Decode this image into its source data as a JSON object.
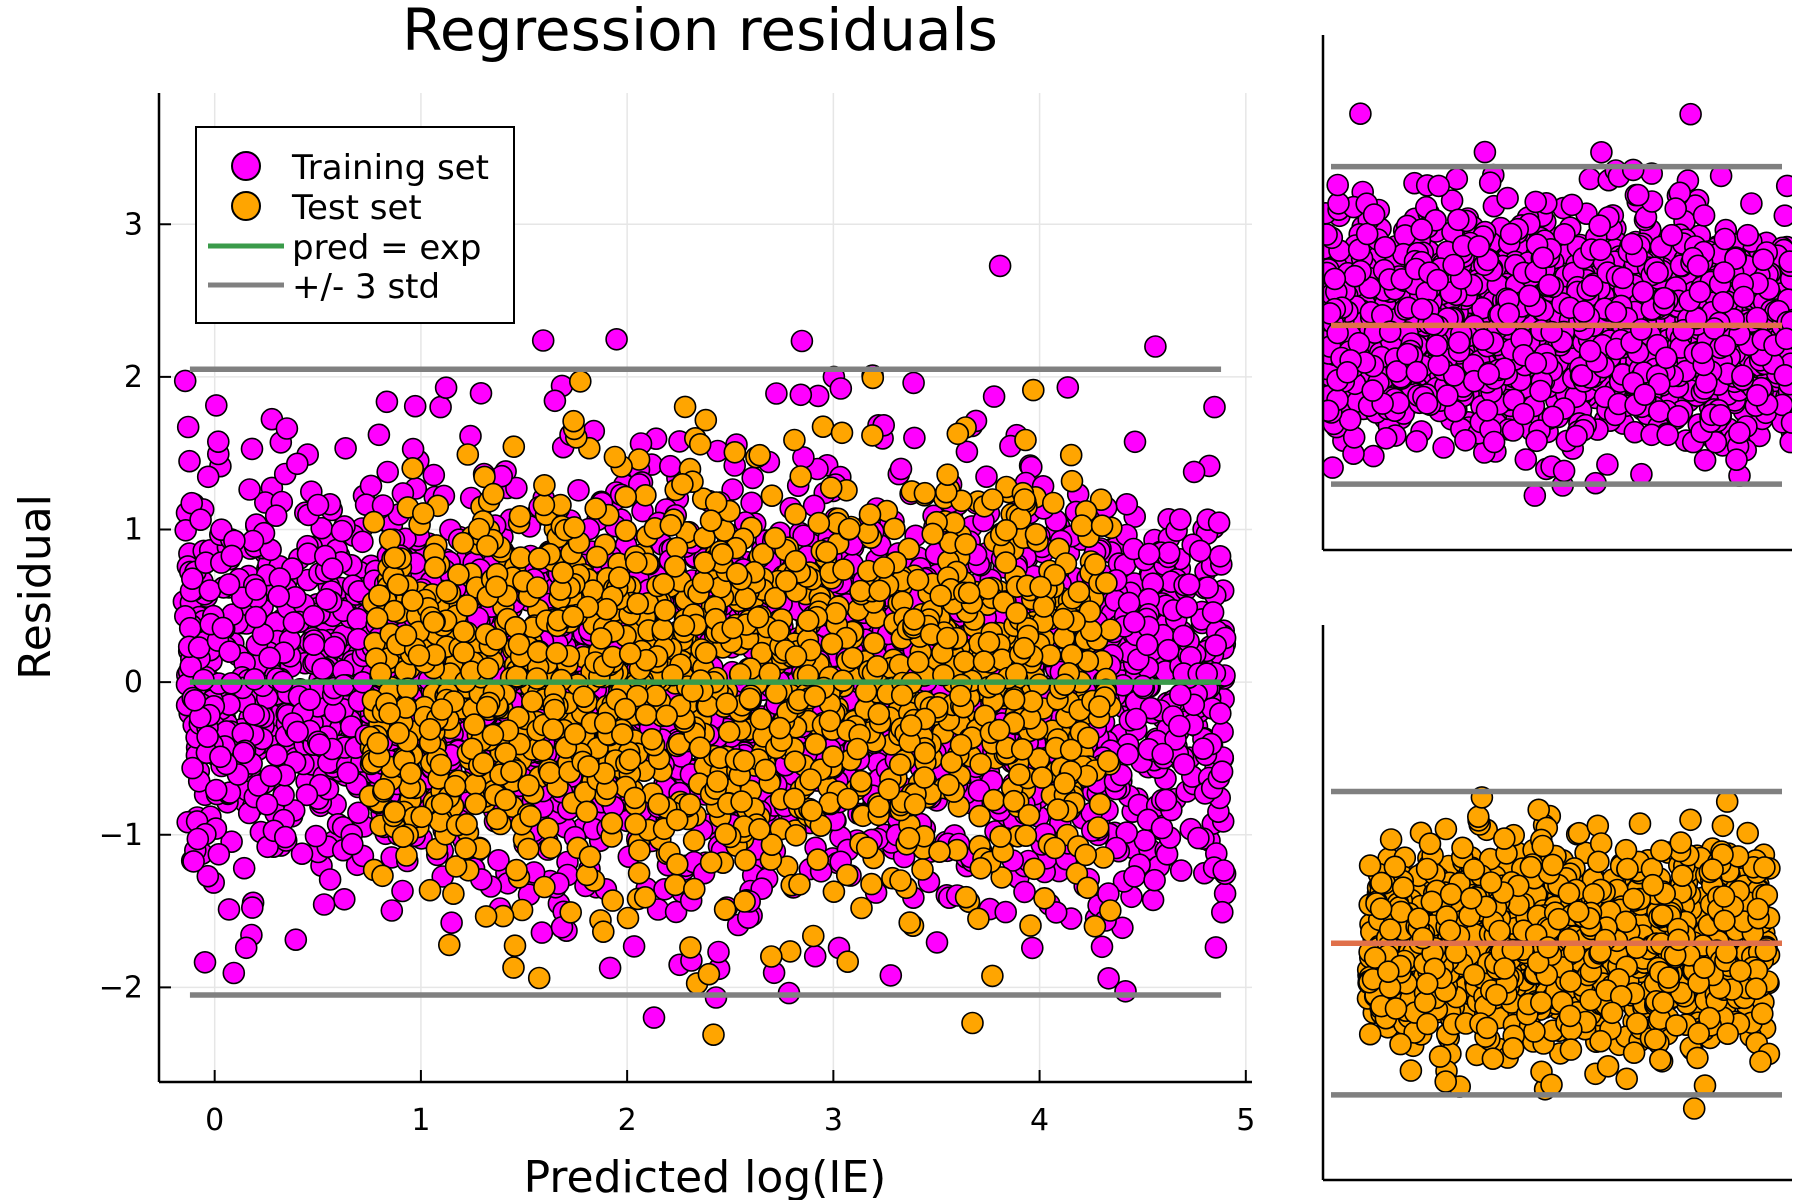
{
  "chart_data": [
    {
      "type": "scatter",
      "title": "Regression residuals",
      "xlabel": "Predicted log(IE)",
      "ylabel": "Residual",
      "xlim": [
        -0.27,
        5.03
      ],
      "ylim": [
        -2.62,
        3.86
      ],
      "xticks": [
        0,
        1,
        2,
        3,
        4,
        5
      ],
      "xtick_labels": [
        "0",
        "1",
        "2",
        "3",
        "4",
        "5"
      ],
      "yticks": [
        -2,
        -1,
        0,
        1,
        2,
        3
      ],
      "ytick_labels": [
        "−2",
        "−1",
        "0",
        "1",
        "2",
        "3"
      ],
      "grid": true,
      "legend_position": "top-left",
      "series": [
        {
          "name": "Training set",
          "kind": "points",
          "color": "#ff00ff",
          "edge": "#000000",
          "n": 3000,
          "x_range": [
            -0.15,
            4.9
          ],
          "y_center": 0.0,
          "y_std": 0.68,
          "y_range": [
            -2.3,
            3.65
          ]
        },
        {
          "name": "Test set",
          "kind": "points",
          "color": "#ffa500",
          "edge": "#000000",
          "n": 1500,
          "x_range": [
            0.75,
            4.35
          ],
          "y_center": 0.0,
          "y_std": 0.68,
          "y_range": [
            -2.42,
            3.32
          ]
        },
        {
          "name": "pred = exp",
          "kind": "line",
          "color": "#3a9b4a",
          "x": [
            -0.12,
            4.88
          ],
          "y": [
            0,
            0
          ]
        },
        {
          "name": "+/- 3 std",
          "kind": "line",
          "color": "#808080",
          "x": [
            -0.12,
            4.88
          ],
          "y": [
            2.05,
            2.05
          ]
        },
        {
          "name": "",
          "kind": "line",
          "color": "#808080",
          "x": [
            -0.12,
            4.88
          ],
          "y": [
            -2.05,
            -2.05
          ]
        }
      ]
    },
    {
      "type": "scatter",
      "series": [
        {
          "kind": "points",
          "color": "#ff00ff",
          "edge": "#000000",
          "n": 2200
        },
        {
          "kind": "hline",
          "color": "#e0704a",
          "y": 0
        },
        {
          "kind": "hline",
          "color": "#808080",
          "y": 2.05
        },
        {
          "kind": "hline",
          "color": "#808080",
          "y": -2.05
        }
      ]
    },
    {
      "type": "scatter",
      "series": [
        {
          "kind": "points",
          "color": "#ffa500",
          "edge": "#000000",
          "n": 1300
        },
        {
          "kind": "hline",
          "color": "#e0704a",
          "y": 0
        },
        {
          "kind": "hline",
          "color": "#808080",
          "y": 2.05
        },
        {
          "kind": "hline",
          "color": "#808080",
          "y": -2.05
        }
      ]
    }
  ]
}
